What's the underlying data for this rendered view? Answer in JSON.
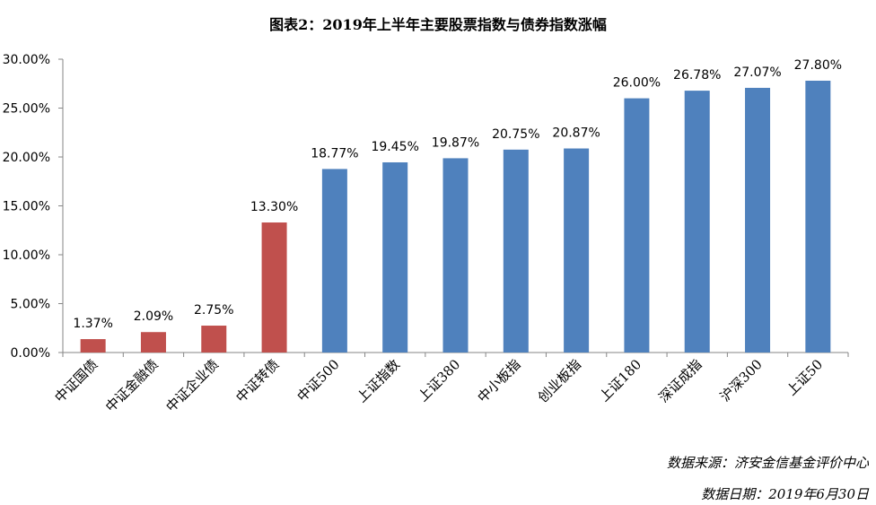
{
  "title": "图表2：2019年上半年主要股票指数与债券指数涨幅",
  "source_line": "数据来源：济安金信基金评价中心",
  "date_line": "数据日期：2019年6月30日",
  "chart_data": {
    "type": "bar",
    "title": "图表2：2019年上半年主要股票指数与债券指数涨幅",
    "xlabel": "",
    "ylabel": "",
    "ylim": [
      0,
      30
    ],
    "y_ticks": [
      0,
      5,
      10,
      15,
      20,
      25,
      30
    ],
    "y_tick_labels": [
      "0.00%",
      "5.00%",
      "10.00%",
      "15.00%",
      "20.00%",
      "25.00%",
      "30.00%"
    ],
    "grid": false,
    "categories": [
      "中证国债",
      "中证金融债",
      "中证企业债",
      "中证转债",
      "中证500",
      "上证指数",
      "上证380",
      "中小板指",
      "创业板指",
      "上证180",
      "深证成指",
      "沪深300",
      "上证50"
    ],
    "values": [
      1.37,
      2.09,
      2.75,
      13.3,
      18.77,
      19.45,
      19.87,
      20.75,
      20.87,
      26.0,
      26.78,
      27.07,
      27.8
    ],
    "value_labels": [
      "1.37%",
      "2.09%",
      "2.75%",
      "13.30%",
      "18.77%",
      "19.45%",
      "19.87%",
      "20.75%",
      "20.87%",
      "26.00%",
      "26.78%",
      "27.07%",
      "27.80%"
    ],
    "colors": [
      "#c0504d",
      "#c0504d",
      "#c0504d",
      "#c0504d",
      "#4f81bd",
      "#4f81bd",
      "#4f81bd",
      "#4f81bd",
      "#4f81bd",
      "#4f81bd",
      "#4f81bd",
      "#4f81bd",
      "#4f81bd"
    ]
  }
}
